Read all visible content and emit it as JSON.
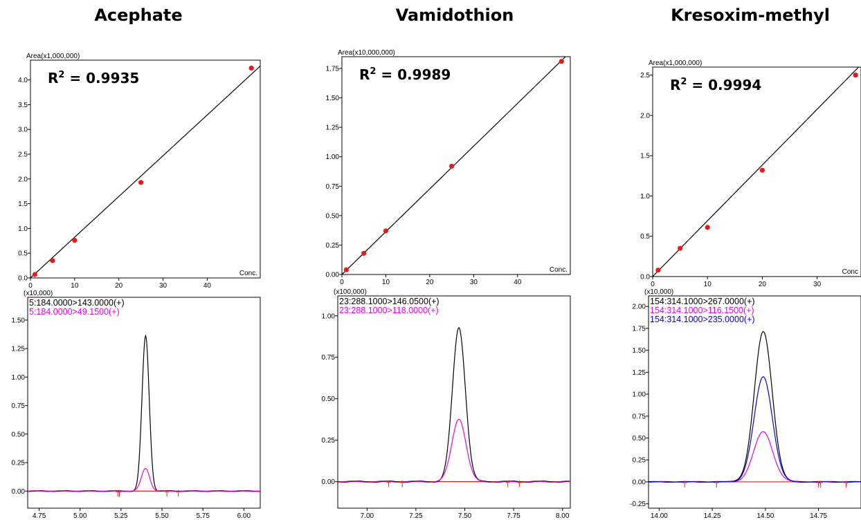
{
  "chart_data": [
    {
      "type": "scatter",
      "title": "Acephate",
      "r2_label": "R",
      "r2_sup": "2",
      "r2_value": " = 0.9935",
      "yscale_label": "Area(x1,000,000)",
      "xlabel_end": "Conc.",
      "xlim": [
        0,
        52
      ],
      "ylim": [
        0,
        4.4
      ],
      "xticks": [
        "0",
        "10",
        "20",
        "30",
        "40"
      ],
      "xtick_values": [
        0,
        10,
        20,
        30,
        40
      ],
      "yticks": [
        "0.0",
        "0.5",
        "1.0",
        "1.5",
        "2.0",
        "2.5",
        "3.0",
        "3.5",
        "4.0"
      ],
      "ytick_values": [
        0,
        0.5,
        1,
        1.5,
        2,
        2.5,
        3,
        3.5,
        4
      ],
      "points": [
        {
          "x": 1,
          "y": 0.07
        },
        {
          "x": 5,
          "y": 0.35
        },
        {
          "x": 10,
          "y": 0.76
        },
        {
          "x": 25,
          "y": 1.93
        },
        {
          "x": 50,
          "y": 4.24
        }
      ],
      "fit_line": [
        {
          "x": 0,
          "y": 0
        },
        {
          "x": 52,
          "y": 4.28
        }
      ],
      "colors": {
        "point": "#e8191a",
        "line": "#000000"
      }
    },
    {
      "type": "scatter",
      "title": "Vamidothion",
      "r2_label": "R",
      "r2_sup": "2",
      "r2_value": " = 0.9989",
      "yscale_label": "Area(x10,000,000)",
      "xlabel_end": "Conc.",
      "xlim": [
        0,
        52
      ],
      "ylim": [
        0,
        1.85
      ],
      "xticks": [
        "0",
        "10",
        "20",
        "30",
        "40"
      ],
      "xtick_values": [
        0,
        10,
        20,
        30,
        40
      ],
      "yticks": [
        "0.00",
        "0.25",
        "0.50",
        "0.75",
        "1.00",
        "1.25",
        "1.50",
        "1.75"
      ],
      "ytick_values": [
        0,
        0.25,
        0.5,
        0.75,
        1,
        1.25,
        1.5,
        1.75
      ],
      "points": [
        {
          "x": 1,
          "y": 0.04
        },
        {
          "x": 5,
          "y": 0.18
        },
        {
          "x": 10,
          "y": 0.37
        },
        {
          "x": 25,
          "y": 0.92
        },
        {
          "x": 50,
          "y": 1.81
        }
      ],
      "fit_line": [
        {
          "x": 0,
          "y": 0
        },
        {
          "x": 52,
          "y": 1.89
        }
      ],
      "colors": {
        "point": "#e8191a",
        "line": "#000000"
      }
    },
    {
      "type": "scatter",
      "title": "Kresoxim-methyl",
      "r2_label": "R",
      "r2_sup": "2",
      "r2_value": " = 0.9994",
      "yscale_label": "Area(x1,000,000)",
      "xlabel_end": "Conc",
      "xlim": [
        0,
        38
      ],
      "ylim": [
        0,
        2.6
      ],
      "xticks": [
        "0",
        "10",
        "20",
        "30"
      ],
      "xtick_values": [
        0,
        10,
        20,
        30
      ],
      "yticks": [
        "0.0",
        "0.5",
        "1.0",
        "1.5",
        "2.0",
        "2.5"
      ],
      "ytick_values": [
        0,
        0.5,
        1,
        1.5,
        2,
        2.5
      ],
      "points": [
        {
          "x": 1,
          "y": 0.08
        },
        {
          "x": 5,
          "y": 0.35
        },
        {
          "x": 10,
          "y": 0.61
        },
        {
          "x": 20,
          "y": 1.32
        },
        {
          "x": 37,
          "y": 2.5
        }
      ],
      "fit_line": [
        {
          "x": 0,
          "y": 0
        },
        {
          "x": 38,
          "y": 2.63
        }
      ],
      "colors": {
        "point": "#e8191a",
        "line": "#000000"
      }
    },
    {
      "type": "line",
      "yscale_label": "(x10,000)",
      "xlim": [
        4.68,
        6.1
      ],
      "ylim": [
        -0.15,
        1.7
      ],
      "xticks": [
        "4.75",
        "5.00",
        "5.25",
        "5.50",
        "5.75",
        "6.00"
      ],
      "xtick_values": [
        4.75,
        5.0,
        5.25,
        5.5,
        5.75,
        6.0
      ],
      "yticks": [
        "0.00",
        "0.25",
        "0.50",
        "0.75",
        "1.00",
        "1.25",
        "1.50"
      ],
      "ytick_values": [
        0,
        0.25,
        0.5,
        0.75,
        1.0,
        1.25,
        1.5
      ],
      "series": [
        {
          "name": "5:184.0000>143.0000(+)",
          "color": "#000000",
          "peak_x": 5.4,
          "peak_y": 1.36,
          "width": 0.022
        },
        {
          "name": "5:184.0000>49.1500(+)",
          "color": "#e600e6",
          "peak_x": 5.4,
          "peak_y": 0.2,
          "width": 0.025
        }
      ],
      "markers": [
        5.23,
        5.24,
        5.53,
        5.6
      ],
      "colors": {
        "baseline": "#e8191a",
        "marker": "#e8191a"
      }
    },
    {
      "type": "line",
      "yscale_label": "(x100,000)",
      "xlim": [
        6.85,
        8.04
      ],
      "ylim": [
        -0.16,
        1.12
      ],
      "xticks": [
        "7.00",
        "7.25",
        "7.50",
        "7.75",
        "8.00"
      ],
      "xtick_values": [
        7.0,
        7.25,
        7.5,
        7.75,
        8.0
      ],
      "yticks": [
        "0.00",
        "0.25",
        "0.50",
        "0.75",
        "1.00"
      ],
      "ytick_values": [
        0,
        0.25,
        0.5,
        0.75,
        1.0
      ],
      "series": [
        {
          "name": "23:288.1000>146.0500(+)",
          "color": "#000000",
          "peak_x": 7.47,
          "peak_y": 0.93,
          "width": 0.033
        },
        {
          "name": "23:288.1000>118.0000(+)",
          "color": "#e600e6",
          "peak_x": 7.47,
          "peak_y": 0.38,
          "width": 0.036
        }
      ],
      "markers": [
        7.11,
        7.18,
        7.72,
        7.78
      ],
      "colors": {
        "baseline": "#e8191a",
        "marker": "#e8191a"
      }
    },
    {
      "type": "line",
      "yscale_label": "(x10,000)",
      "xlim": [
        13.95,
        14.95
      ],
      "ylim": [
        -0.3,
        2.12
      ],
      "xticks": [
        "14.00",
        "14.25",
        "14.50",
        "14.75"
      ],
      "xtick_values": [
        14.0,
        14.25,
        14.5,
        14.75
      ],
      "yticks": [
        "-0.25",
        "0.00",
        "0.25",
        "0.50",
        "0.75",
        "1.00",
        "1.25",
        "1.50",
        "1.75",
        "2.00"
      ],
      "ytick_values": [
        -0.25,
        0,
        0.25,
        0.5,
        0.75,
        1.0,
        1.25,
        1.5,
        1.75,
        2.0
      ],
      "series": [
        {
          "name": "154:314.1000>267.0000(+)",
          "color": "#000000",
          "peak_x": 14.49,
          "peak_y": 1.71,
          "width": 0.042
        },
        {
          "name": "154:314.1000>116.1500(+)",
          "color": "#e600e6",
          "peak_x": 14.49,
          "peak_y": 0.57,
          "width": 0.045
        },
        {
          "name": "154:314.1000>235.0000(+)",
          "color": "#0000e6",
          "peak_x": 14.49,
          "peak_y": 1.2,
          "width": 0.043
        }
      ],
      "markers": [
        14.12,
        14.27,
        14.75,
        14.76,
        14.88
      ],
      "colors": {
        "baseline": "#e8191a",
        "marker": "#e8191a"
      }
    }
  ]
}
